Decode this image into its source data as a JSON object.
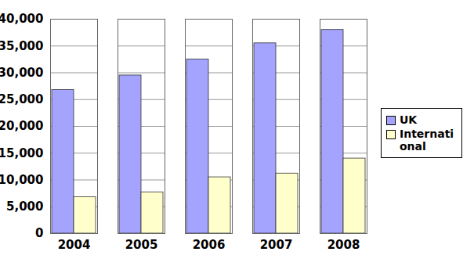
{
  "chart_data": {
    "type": "bar",
    "categories": [
      "2004",
      "2005",
      "2006",
      "2007",
      "2008"
    ],
    "series": [
      {
        "name": "UK",
        "color": "#a4a4ff",
        "values": [
          26800,
          29500,
          32500,
          35500,
          38000
        ]
      },
      {
        "name": "International",
        "color": "#ffffcc",
        "values": [
          6800,
          7700,
          10500,
          11200,
          14000
        ]
      }
    ],
    "ylim": [
      0,
      40000
    ],
    "yticks": [
      0,
      {
        "value": 5000,
        "label": "5,000"
      },
      {
        "value": 10000,
        "label": "10,000"
      },
      {
        "value": 15000,
        "label": "15,000"
      },
      {
        "value": 20000,
        "label": "20,000"
      },
      {
        "value": 25000,
        "label": "25,000"
      },
      {
        "value": 30000,
        "label": "30,000"
      },
      {
        "value": 35000,
        "label": "35,000"
      },
      {
        "value": 40000,
        "label": "40,000"
      }
    ],
    "grid": true,
    "legend": "right"
  }
}
